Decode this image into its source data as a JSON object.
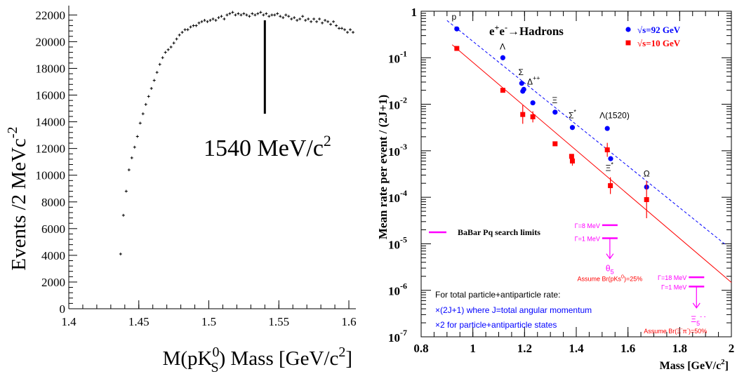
{
  "chart_data": [
    {
      "type": "scatter",
      "xlabel_main": "M(pK",
      "xlabel_sup": "0",
      "xlabel_sub": "S",
      "xlabel_tail": ") Mass [GeV/c",
      "xlabel_sup2": "2",
      "xlabel_end": "]",
      "ylabel_main": "Events /2 MeVc",
      "ylabel_sup": "-2",
      "annotation_main": "1540 MeV/c",
      "annotation_sup": "2",
      "annotation_x": 1.54,
      "annotation_line_ylim": [
        14600,
        21600
      ],
      "xlim": [
        1.4,
        1.605
      ],
      "ylim": [
        0,
        22700
      ],
      "xticks": [
        "1.4",
        "1.45",
        "1.5",
        "1.55",
        "1.6"
      ],
      "xtick_values": [
        1.4,
        1.45,
        1.5,
        1.55,
        1.6
      ],
      "yticks": [
        "0",
        "2000",
        "4000",
        "6000",
        "8000",
        "10000",
        "12000",
        "14000",
        "16000",
        "18000",
        "20000",
        "22000"
      ],
      "ytick_values": [
        0,
        2000,
        4000,
        6000,
        8000,
        10000,
        12000,
        14000,
        16000,
        18000,
        20000,
        22000
      ],
      "x": [
        1.437,
        1.439,
        1.441,
        1.443,
        1.445,
        1.447,
        1.449,
        1.451,
        1.453,
        1.455,
        1.457,
        1.459,
        1.461,
        1.463,
        1.465,
        1.467,
        1.469,
        1.471,
        1.473,
        1.475,
        1.477,
        1.479,
        1.481,
        1.483,
        1.485,
        1.487,
        1.489,
        1.491,
        1.493,
        1.495,
        1.497,
        1.499,
        1.501,
        1.503,
        1.505,
        1.507,
        1.509,
        1.511,
        1.513,
        1.515,
        1.517,
        1.519,
        1.521,
        1.523,
        1.525,
        1.527,
        1.529,
        1.531,
        1.533,
        1.535,
        1.537,
        1.539,
        1.541,
        1.543,
        1.545,
        1.547,
        1.549,
        1.551,
        1.553,
        1.555,
        1.557,
        1.559,
        1.561,
        1.563,
        1.565,
        1.567,
        1.569,
        1.571,
        1.573,
        1.575,
        1.577,
        1.579,
        1.581,
        1.583,
        1.585,
        1.587,
        1.589,
        1.591,
        1.593,
        1.595,
        1.597,
        1.599,
        1.601,
        1.603
      ],
      "y": [
        4100,
        7000,
        8800,
        10400,
        11300,
        12100,
        12900,
        13900,
        14600,
        15300,
        15900,
        16500,
        17100,
        17700,
        18300,
        18800,
        19200,
        19400,
        19600,
        19900,
        20200,
        20500,
        20700,
        20900,
        20900,
        21100,
        21200,
        21200,
        21400,
        21500,
        21600,
        21500,
        21600,
        21700,
        21600,
        21800,
        21900,
        21700,
        22000,
        22100,
        22200,
        22000,
        22100,
        22000,
        22100,
        22000,
        21900,
        22100,
        22000,
        22100,
        22200,
        22000,
        22100,
        21900,
        22000,
        22000,
        22100,
        21900,
        21800,
        22000,
        21900,
        21700,
        21800,
        21600,
        21700,
        21900,
        21600,
        21700,
        21500,
        21700,
        21500,
        21700,
        21400,
        21600,
        21500,
        21300,
        21500,
        21200,
        21000,
        21000,
        20900,
        20700,
        20900,
        20700
      ]
    },
    {
      "type": "scatter",
      "log_y": true,
      "xlim": [
        0.8,
        2.0
      ],
      "ylim_exp": [
        -7,
        0
      ],
      "xticks": [
        "0.8",
        "1",
        "1.2",
        "1.4",
        "1.6",
        "1.8",
        "2"
      ],
      "xtick_values": [
        0.8,
        1.0,
        1.2,
        1.4,
        1.6,
        1.8,
        2.0
      ],
      "yticks": [
        {
          "value_exp": 0,
          "label": "1",
          "sup": ""
        },
        {
          "value_exp": -1,
          "label": "10",
          "sup": "-1"
        },
        {
          "value_exp": -2,
          "label": "10",
          "sup": "-2"
        },
        {
          "value_exp": -3,
          "label": "10",
          "sup": "-3"
        },
        {
          "value_exp": -4,
          "label": "10",
          "sup": "-4"
        },
        {
          "value_exp": -5,
          "label": "10",
          "sup": "-5"
        },
        {
          "value_exp": -6,
          "label": "10",
          "sup": "-6"
        },
        {
          "value_exp": -7,
          "label": "10",
          "sup": "-7"
        }
      ],
      "xlabel": "Mass [GeV/c",
      "xlabel_sup": "2",
      "xlabel_end": "]",
      "ylabel": "Mean rate per event / (2J+1)",
      "title_main": "e",
      "title_sup1": "+",
      "title_mid": "e",
      "title_sup2": "-",
      "title_arrow": "→",
      "title_tail": "Hadrons",
      "legend": [
        {
          "name": "√s=92 GeV",
          "color": "#0000ff",
          "marker": "circle"
        },
        {
          "name": "√s=10 GeV",
          "color": "#ff0000",
          "marker": "square"
        }
      ],
      "series": [
        {
          "name": "√s=92 GeV",
          "color": "#0000ff",
          "points": [
            {
              "x": 0.938,
              "y_exp": -0.38
            },
            {
              "x": 1.116,
              "y_exp": -1.0
            },
            {
              "x": 1.189,
              "y_exp": -1.55
            },
            {
              "x": 1.193,
              "y_exp": -1.72
            },
            {
              "x": 1.197,
              "y_exp": -1.68
            },
            {
              "x": 1.232,
              "y_exp": -1.97
            },
            {
              "x": 1.318,
              "y_exp": -2.17
            },
            {
              "x": 1.385,
              "y_exp": -2.5
            },
            {
              "x": 1.52,
              "y_exp": -2.52
            },
            {
              "x": 1.533,
              "y_exp": -3.17
            },
            {
              "x": 1.672,
              "y_exp": -3.78
            }
          ]
        },
        {
          "name": "√s=10 GeV",
          "color": "#ff0000",
          "points": [
            {
              "x": 0.938,
              "y_exp": -0.8,
              "err": 0
            },
            {
              "x": 1.116,
              "y_exp": -1.7,
              "err": 0
            },
            {
              "x": 1.193,
              "y_exp": -2.22,
              "err": 0.2
            },
            {
              "x": 1.232,
              "y_exp": -2.27,
              "err": 0.12
            },
            {
              "x": 1.318,
              "y_exp": -2.85,
              "err": 0
            },
            {
              "x": 1.385,
              "y_exp": -3.22,
              "err": 0.1
            },
            {
              "x": 1.382,
              "y_exp": -3.12,
              "err": 0
            },
            {
              "x": 1.52,
              "y_exp": -2.98,
              "err": 0.15
            },
            {
              "x": 1.532,
              "y_exp": -3.75,
              "err": 0.18
            },
            {
              "x": 1.672,
              "y_exp": -4.05,
              "err": 0.4
            }
          ]
        }
      ],
      "fit_lines": [
        {
          "color": "#0000ff",
          "dash": true,
          "x": [
            0.9,
            1.98
          ],
          "y_exp": [
            -0.2,
            -5.03
          ]
        },
        {
          "color": "#ff0000",
          "dash": false,
          "x": [
            0.92,
            2.0
          ],
          "y_exp": [
            -0.72,
            -5.83
          ]
        }
      ],
      "point_labels": [
        {
          "text": "p",
          "sup": "",
          "x": 0.918,
          "y_exp": -0.18
        },
        {
          "text": "Λ",
          "sup": "",
          "x": 1.104,
          "y_exp": -0.82
        },
        {
          "text": "Σ",
          "sup": "",
          "x": 1.176,
          "y_exp": -1.37
        },
        {
          "text": "Δ",
          "sup": "++",
          "x": 1.21,
          "y_exp": -1.58
        },
        {
          "text": "Ξ",
          "sup": "",
          "x": 1.306,
          "y_exp": -1.98
        },
        {
          "text": "Σ",
          "sup": "*",
          "x": 1.37,
          "y_exp": -2.3
        },
        {
          "text": "Λ(1520)",
          "sup": "",
          "x": 1.49,
          "y_exp": -2.3
        },
        {
          "text": "Ξ",
          "sup": "*",
          "x": 1.513,
          "y_exp": -3.43
        },
        {
          "text": "Ω",
          "sup": "",
          "x": 1.66,
          "y_exp": -3.55
        }
      ],
      "babar": {
        "legend_text": "BaBar Pq search limits",
        "color": "#ff00ff",
        "theta": {
          "label": "θ",
          "label_sub": "5",
          "x": 1.53,
          "line1_label": "Γ=8 MeV",
          "line1_y_exp": -4.6,
          "line2_label": "Γ=1 MeV",
          "line2_y_exp": -4.88,
          "arrow_to_y_exp": -5.32,
          "assume": "Assume Br(pKs",
          "assume_sup": "0",
          "assume_end": ")=25%"
        },
        "xi": {
          "label": "Ξ",
          "label_sub": "5",
          "label_sup": "- -",
          "x": 1.865,
          "line1_label": "Γ=18 MeV",
          "line1_y_exp": -5.72,
          "line2_label": "Γ=1 MeV",
          "line2_y_exp": -5.92,
          "arrow_to_y_exp": -6.38,
          "assume": "Assume Br(Ξ",
          "assume_sup": "-",
          "assume_mid": "π",
          "assume_sup2": "-",
          "assume_end": ")=50%"
        }
      },
      "notes": [
        {
          "text": "For total particle+antiparticle rate:",
          "color": "#000000"
        },
        {
          "text": "×(2J+1)   where J=total angular momentum",
          "color": "#0000ff"
        },
        {
          "text": "×2   for particle+antiparticle states",
          "color": "#0000ff"
        }
      ]
    }
  ]
}
